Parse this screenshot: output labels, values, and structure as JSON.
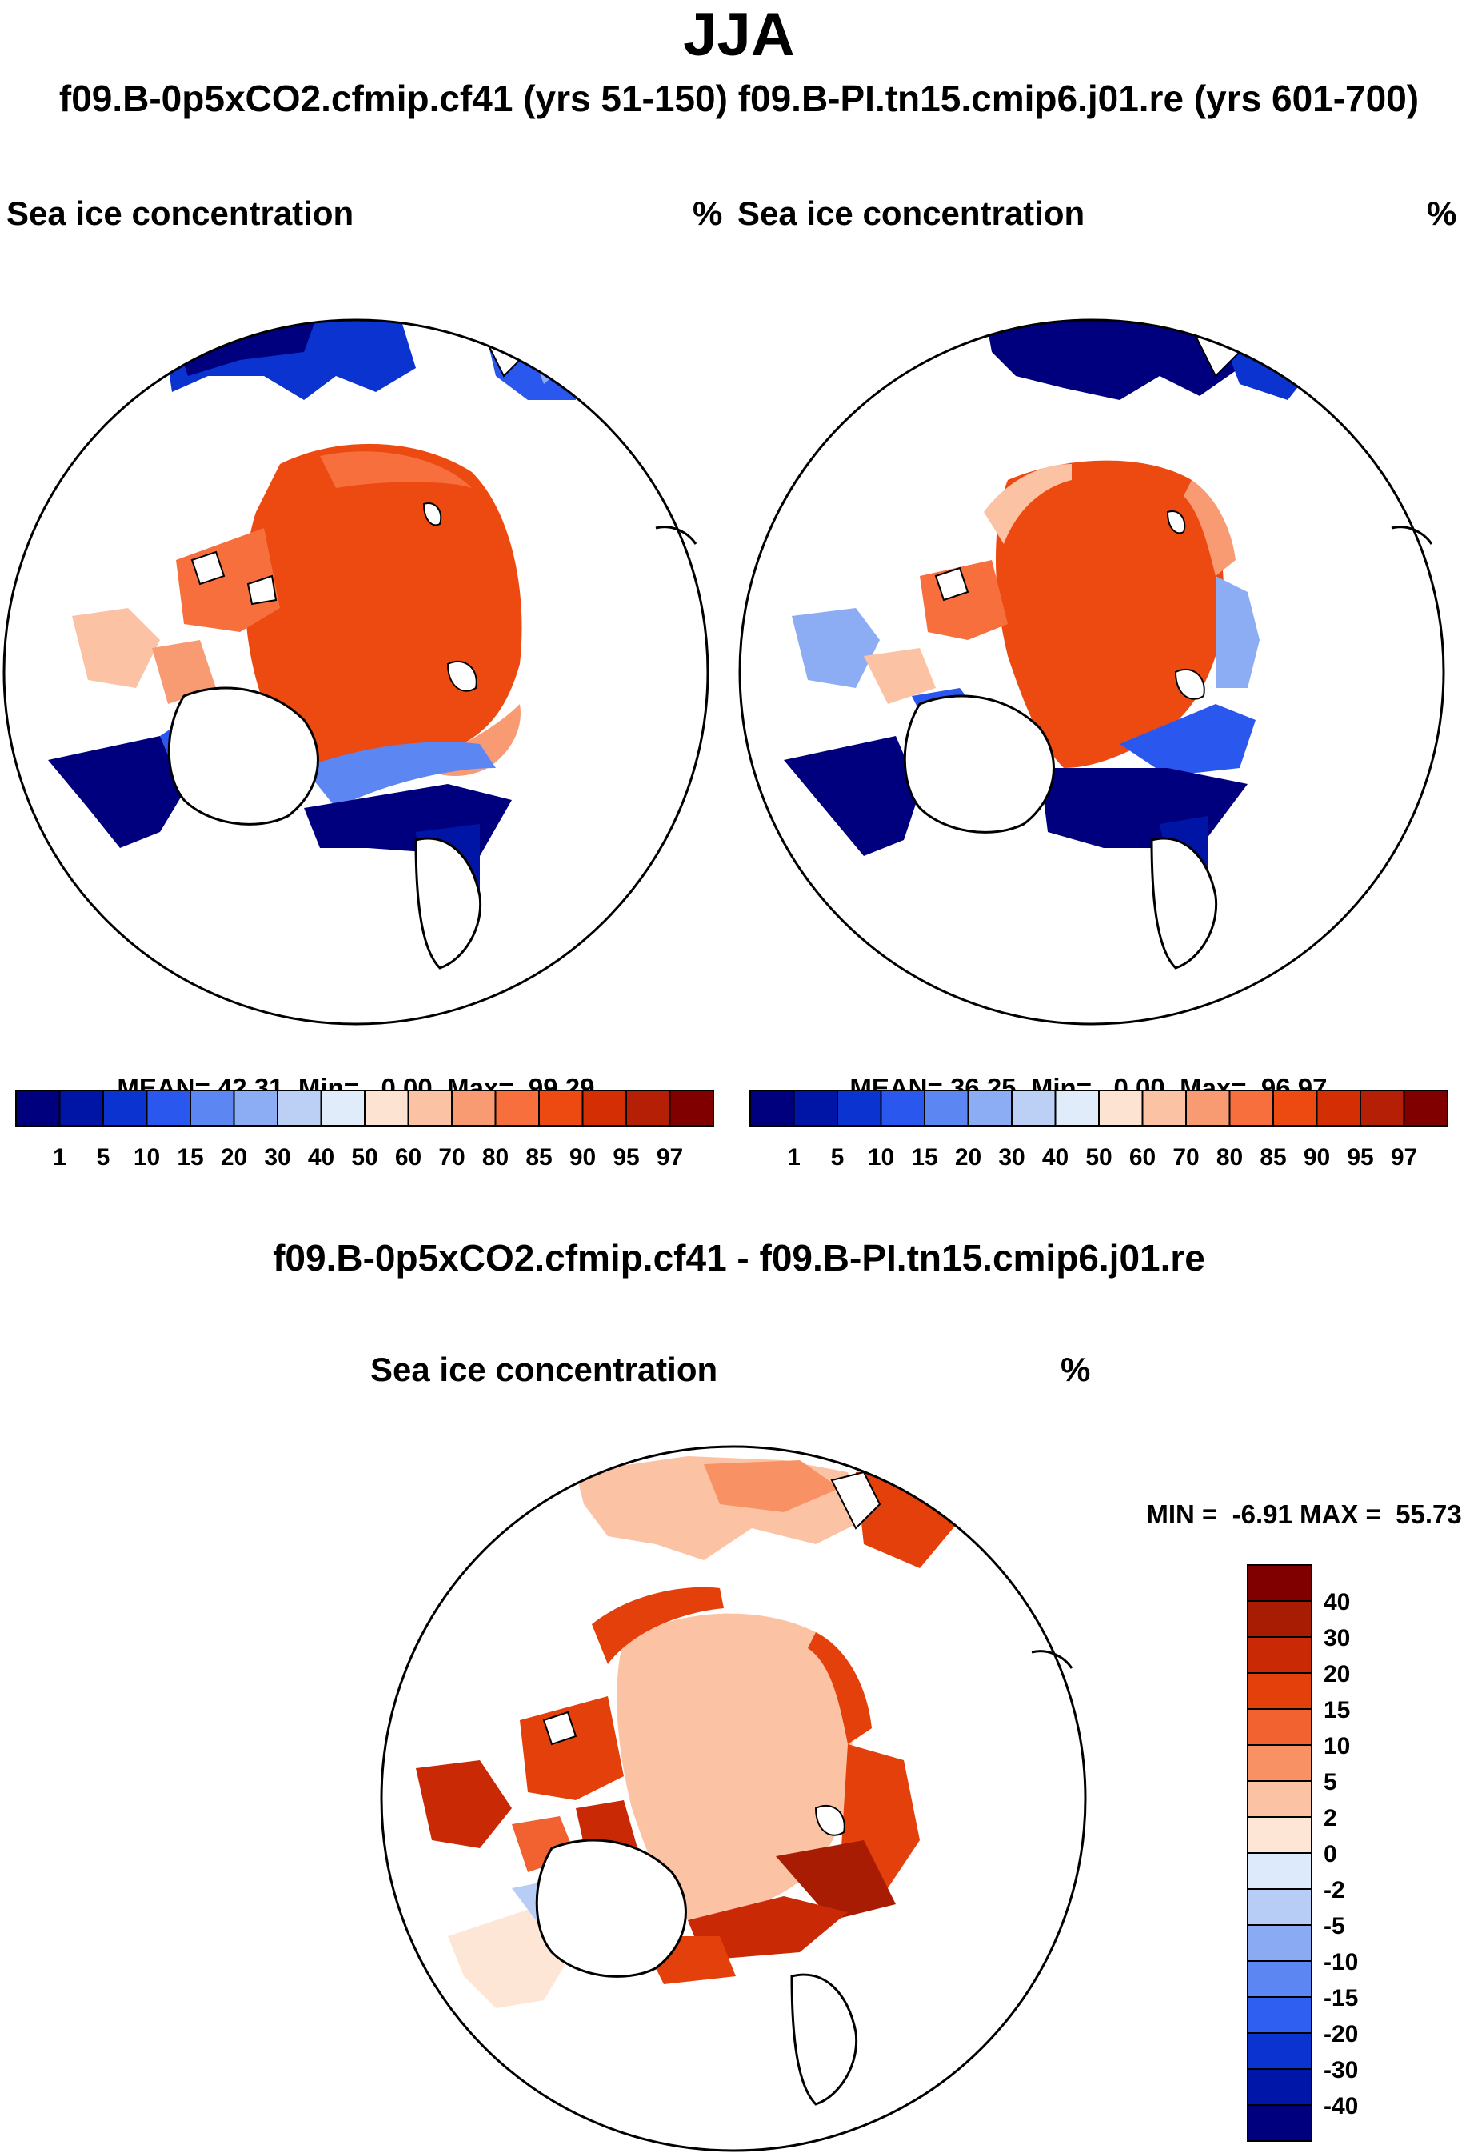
{
  "figure": {
    "title": "JJA",
    "subtitle": "f09.B-0p5xCO2.cfmip.cf41 (yrs 51-150) f09.B-PI.tn15.cmip6.j01.re (yrs 601-700)",
    "diff_title": "f09.B-0p5xCO2.cfmip.cf41 - f09.B-PI.tn15.cmip6.j01.re"
  },
  "chart_data": [
    {
      "type": "heatmap",
      "projection": "north polar stereographic",
      "case": "f09.B-0p5xCO2.cfmip.cf41 (yrs 51-150)",
      "variable": "Sea ice concentration",
      "units": "%",
      "stats": {
        "mean_label": "MEAN=",
        "mean": "42.31",
        "min_label": "Min=",
        "min": "0.00",
        "max_label": "Max=",
        "max": "99.29"
      },
      "colorbar": {
        "orientation": "horizontal",
        "levels": [
          "1",
          "5",
          "10",
          "15",
          "20",
          "30",
          "40",
          "50",
          "60",
          "70",
          "80",
          "85",
          "90",
          "95",
          "97"
        ],
        "colors": [
          "#00007f",
          "#0015a5",
          "#0b33cf",
          "#2a57ee",
          "#5c87f2",
          "#8cadf4",
          "#bcd0f6",
          "#e0ecfa",
          "#fde4d2",
          "#fbc2a4",
          "#f89a72",
          "#f66f3d",
          "#ed4a12",
          "#d42e05",
          "#b41f05",
          "#800000"
        ]
      }
    },
    {
      "type": "heatmap",
      "projection": "north polar stereographic",
      "case": "f09.B-PI.tn15.cmip6.j01.re (yrs 601-700)",
      "variable": "Sea ice concentration",
      "units": "%",
      "stats": {
        "mean_label": "MEAN=",
        "mean": "36.25",
        "min_label": "Min=",
        "min": "0.00",
        "max_label": "Max=",
        "max": "96.97"
      },
      "colorbar": {
        "orientation": "horizontal",
        "levels": [
          "1",
          "5",
          "10",
          "15",
          "20",
          "30",
          "40",
          "50",
          "60",
          "70",
          "80",
          "85",
          "90",
          "95",
          "97"
        ],
        "colors": [
          "#00007f",
          "#0015a5",
          "#0b33cf",
          "#2a57ee",
          "#5c87f2",
          "#8cadf4",
          "#bcd0f6",
          "#e0ecfa",
          "#fde4d2",
          "#fbc2a4",
          "#f89a72",
          "#f66f3d",
          "#ed4a12",
          "#d42e05",
          "#b41f05",
          "#800000"
        ]
      }
    },
    {
      "type": "heatmap",
      "projection": "north polar stereographic",
      "case": "f09.B-0p5xCO2.cfmip.cf41 - f09.B-PI.tn15.cmip6.j01.re",
      "variable": "Sea ice concentration",
      "units": "%",
      "stats": {
        "min_label": "MIN =",
        "min": "-6.91",
        "max_label": "MAX =",
        "max": "55.73"
      },
      "colorbar": {
        "orientation": "vertical",
        "levels": [
          "40",
          "30",
          "20",
          "15",
          "10",
          "5",
          "2",
          "0",
          "-2",
          "-5",
          "-10",
          "-15",
          "-20",
          "-30",
          "-40"
        ],
        "colors": [
          "#800000",
          "#a81c04",
          "#c92a05",
          "#e4400c",
          "#f26130",
          "#f89264",
          "#fbc3a4",
          "#fde6d6",
          "#dceafb",
          "#b7cdf6",
          "#8aabf3",
          "#5c87f2",
          "#2f5ff0",
          "#0b33cf",
          "#0016a8",
          "#00007f"
        ]
      }
    }
  ]
}
